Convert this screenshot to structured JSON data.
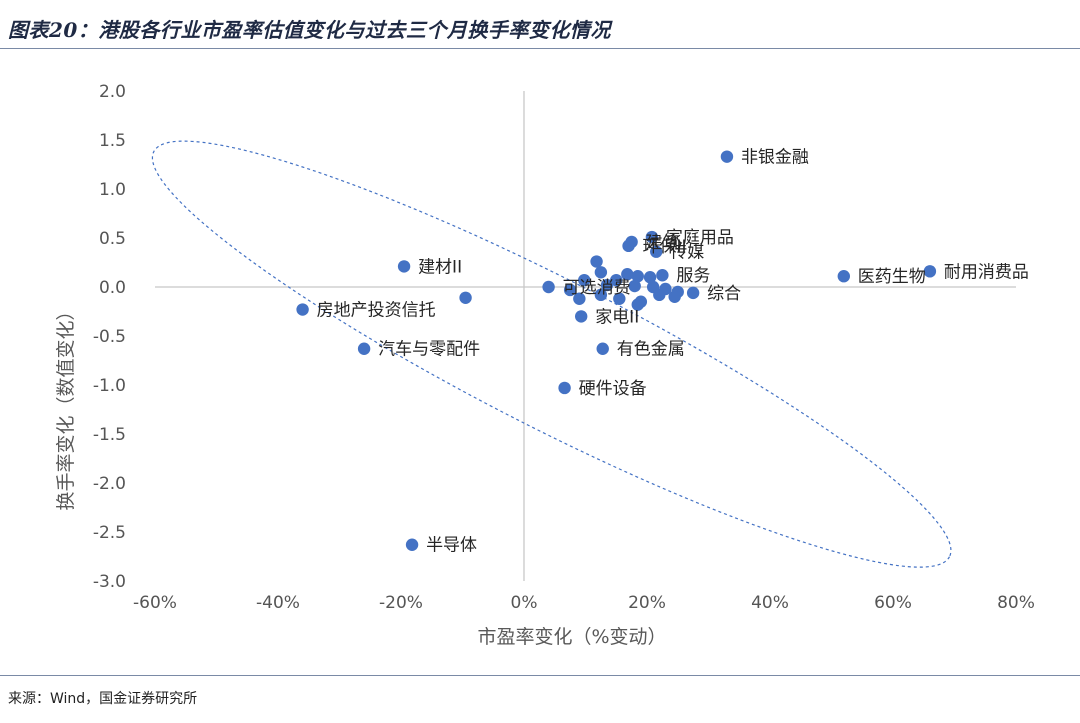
{
  "figure": {
    "title": "图表20：港股各行业市盈率估值变化与过去三个月换手率变化情况",
    "source": "来源：Wind，国金证券研究所"
  },
  "chart_data": {
    "type": "scatter",
    "xlabel": "市盈率变化（%变动）",
    "ylabel": "换手率变化（数值变化）",
    "xlim": [
      -60,
      80
    ],
    "ylim": [
      -3.0,
      2.0
    ],
    "x_ticks": [
      "-60%",
      "-40%",
      "-20%",
      "0%",
      "20%",
      "40%",
      "60%",
      "80%"
    ],
    "y_ticks": [
      "2.0",
      "1.5",
      "1.0",
      "0.5",
      "0.0",
      "-0.5",
      "-1.0",
      "-1.5",
      "-2.0",
      "-2.5",
      "-3.0"
    ],
    "grid": false,
    "marker_color": "#4472c4",
    "ellipse_color": "#4472c4",
    "points": [
      {
        "label": "非银金融",
        "x": 33.0,
        "y": 1.33
      },
      {
        "label": "家庭用品",
        "x": 20.8,
        "y": 0.51
      },
      {
        "label": "建筑",
        "x": 17.5,
        "y": 0.46
      },
      {
        "label": "环保II",
        "x": 17.0,
        "y": 0.42
      },
      {
        "label": "传媒",
        "x": 21.5,
        "y": 0.36
      },
      {
        "label": "",
        "x": 11.8,
        "y": 0.26
      },
      {
        "label": "",
        "x": 12.5,
        "y": 0.15
      },
      {
        "label": "",
        "x": 16.8,
        "y": 0.13
      },
      {
        "label": "",
        "x": 18.5,
        "y": 0.11
      },
      {
        "label": "",
        "x": 20.5,
        "y": 0.1
      },
      {
        "label": "服务",
        "x": 22.5,
        "y": 0.12
      },
      {
        "label": "",
        "x": 15.0,
        "y": 0.07
      },
      {
        "label": "",
        "x": 9.8,
        "y": 0.07
      },
      {
        "label": "",
        "x": 13.5,
        "y": 0.02
      },
      {
        "label": "",
        "x": 18.0,
        "y": 0.01
      },
      {
        "label": "",
        "x": 21.0,
        "y": 0.0
      },
      {
        "label": "",
        "x": 23.0,
        "y": -0.02
      },
      {
        "label": "",
        "x": 25.0,
        "y": -0.05
      },
      {
        "label": "综合",
        "x": 27.5,
        "y": -0.06
      },
      {
        "label": "",
        "x": 7.5,
        "y": -0.03
      },
      {
        "label": "",
        "x": 9.0,
        "y": -0.12
      },
      {
        "label": "",
        "x": 12.5,
        "y": -0.08
      },
      {
        "label": "",
        "x": 15.5,
        "y": -0.12
      },
      {
        "label": "",
        "x": 19.0,
        "y": -0.15
      },
      {
        "label": "",
        "x": 22.0,
        "y": -0.08
      },
      {
        "label": "",
        "x": 24.5,
        "y": -0.1
      },
      {
        "label": "",
        "x": 18.5,
        "y": -0.18
      },
      {
        "label": "家电II",
        "x": 9.3,
        "y": -0.3
      },
      {
        "label": "医药生物",
        "x": 52.0,
        "y": 0.11
      },
      {
        "label": "耐用消费品",
        "x": 66.0,
        "y": 0.16
      },
      {
        "label": "建材II",
        "x": -19.5,
        "y": 0.21
      },
      {
        "label": "可选消费",
        "x": 4.0,
        "y": 0.0
      },
      {
        "label": "",
        "x": -9.5,
        "y": -0.11
      },
      {
        "label": "房地产投资信托",
        "x": -36.0,
        "y": -0.23
      },
      {
        "label": "汽车与零配件",
        "x": -26.0,
        "y": -0.63
      },
      {
        "label": "有色金属",
        "x": 12.8,
        "y": -0.63
      },
      {
        "label": "硬件设备",
        "x": 6.6,
        "y": -1.03
      },
      {
        "label": "半导体",
        "x": -18.2,
        "y": -2.63
      }
    ]
  }
}
